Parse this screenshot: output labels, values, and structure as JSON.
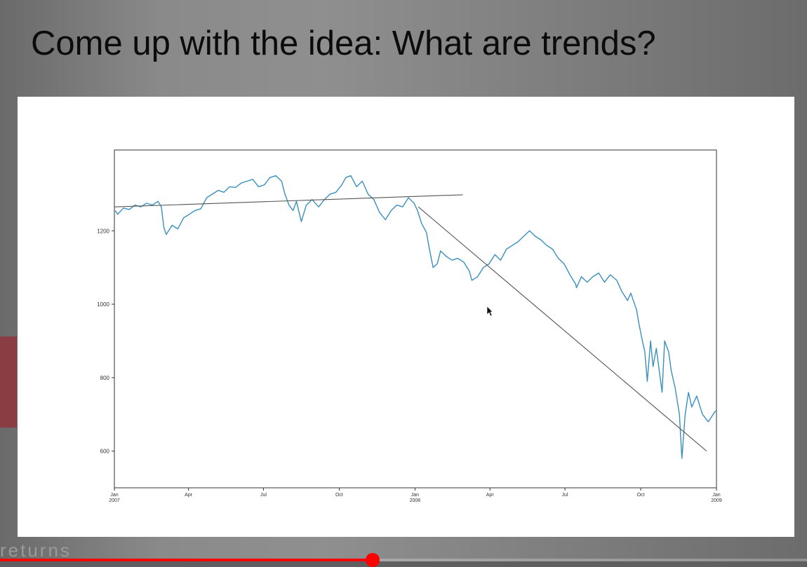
{
  "slide": {
    "title": "Come up with the idea: What are trends?"
  },
  "background": {
    "partial_text": "returns"
  },
  "player": {
    "progress_fraction": 0.462,
    "progress_color": "#ff0000"
  },
  "chart_data": {
    "type": "line",
    "title": "",
    "xlabel": "",
    "ylabel": "",
    "xlim": [
      "2007-01-01",
      "2009-01-01"
    ],
    "ylim": [
      500,
      1420
    ],
    "yticks": [
      600,
      800,
      1000,
      1200
    ],
    "ytick_labels": [
      "600",
      "800",
      "1000",
      "1200"
    ],
    "xticks": [
      {
        "date": "2007-01-01",
        "label": "Jan",
        "year": "2007"
      },
      {
        "date": "2007-04-01",
        "label": "Apr",
        "year": ""
      },
      {
        "date": "2007-07-01",
        "label": "Jul",
        "year": ""
      },
      {
        "date": "2007-10-01",
        "label": "Oct",
        "year": ""
      },
      {
        "date": "2008-01-01",
        "label": "Jan",
        "year": "2008"
      },
      {
        "date": "2008-04-01",
        "label": "Apr",
        "year": ""
      },
      {
        "date": "2008-07-01",
        "label": "Jul",
        "year": ""
      },
      {
        "date": "2008-10-01",
        "label": "Oct",
        "year": ""
      },
      {
        "date": "2009-01-01",
        "label": "Jan",
        "year": "2009"
      }
    ],
    "grid": false,
    "series": [
      {
        "color": "#3a8fbf",
        "points": [
          [
            "2007-01-02",
            1255
          ],
          [
            "2007-01-05",
            1245
          ],
          [
            "2007-01-12",
            1262
          ],
          [
            "2007-01-19",
            1258
          ],
          [
            "2007-01-26",
            1270
          ],
          [
            "2007-02-02",
            1265
          ],
          [
            "2007-02-09",
            1275
          ],
          [
            "2007-02-16",
            1270
          ],
          [
            "2007-02-23",
            1280
          ],
          [
            "2007-02-27",
            1265
          ],
          [
            "2007-03-02",
            1210
          ],
          [
            "2007-03-05",
            1190
          ],
          [
            "2007-03-12",
            1215
          ],
          [
            "2007-03-19",
            1205
          ],
          [
            "2007-03-26",
            1235
          ],
          [
            "2007-04-02",
            1245
          ],
          [
            "2007-04-09",
            1255
          ],
          [
            "2007-04-16",
            1260
          ],
          [
            "2007-04-23",
            1290
          ],
          [
            "2007-04-30",
            1300
          ],
          [
            "2007-05-07",
            1310
          ],
          [
            "2007-05-14",
            1305
          ],
          [
            "2007-05-21",
            1320
          ],
          [
            "2007-05-28",
            1318
          ],
          [
            "2007-06-04",
            1330
          ],
          [
            "2007-06-11",
            1335
          ],
          [
            "2007-06-18",
            1340
          ],
          [
            "2007-06-25",
            1320
          ],
          [
            "2007-07-02",
            1325
          ],
          [
            "2007-07-09",
            1345
          ],
          [
            "2007-07-16",
            1350
          ],
          [
            "2007-07-23",
            1335
          ],
          [
            "2007-07-27",
            1300
          ],
          [
            "2007-08-01",
            1270
          ],
          [
            "2007-08-06",
            1255
          ],
          [
            "2007-08-10",
            1280
          ],
          [
            "2007-08-16",
            1225
          ],
          [
            "2007-08-22",
            1270
          ],
          [
            "2007-08-29",
            1285
          ],
          [
            "2007-09-06",
            1265
          ],
          [
            "2007-09-13",
            1285
          ],
          [
            "2007-09-20",
            1300
          ],
          [
            "2007-09-27",
            1305
          ],
          [
            "2007-10-04",
            1325
          ],
          [
            "2007-10-09",
            1345
          ],
          [
            "2007-10-15",
            1350
          ],
          [
            "2007-10-22",
            1320
          ],
          [
            "2007-10-29",
            1335
          ],
          [
            "2007-11-05",
            1300
          ],
          [
            "2007-11-12",
            1285
          ],
          [
            "2007-11-19",
            1250
          ],
          [
            "2007-11-26",
            1230
          ],
          [
            "2007-12-03",
            1255
          ],
          [
            "2007-12-10",
            1270
          ],
          [
            "2007-12-17",
            1265
          ],
          [
            "2007-12-24",
            1290
          ],
          [
            "2007-12-31",
            1275
          ],
          [
            "2008-01-04",
            1255
          ],
          [
            "2008-01-09",
            1220
          ],
          [
            "2008-01-15",
            1195
          ],
          [
            "2008-01-18",
            1155
          ],
          [
            "2008-01-23",
            1100
          ],
          [
            "2008-01-28",
            1110
          ],
          [
            "2008-02-01",
            1145
          ],
          [
            "2008-02-08",
            1130
          ],
          [
            "2008-02-15",
            1120
          ],
          [
            "2008-02-22",
            1125
          ],
          [
            "2008-02-29",
            1115
          ],
          [
            "2008-03-07",
            1090
          ],
          [
            "2008-03-10",
            1065
          ],
          [
            "2008-03-17",
            1075
          ],
          [
            "2008-03-24",
            1100
          ],
          [
            "2008-03-31",
            1110
          ],
          [
            "2008-04-07",
            1135
          ],
          [
            "2008-04-14",
            1120
          ],
          [
            "2008-04-21",
            1150
          ],
          [
            "2008-04-28",
            1160
          ],
          [
            "2008-05-05",
            1170
          ],
          [
            "2008-05-12",
            1185
          ],
          [
            "2008-05-19",
            1200
          ],
          [
            "2008-05-26",
            1185
          ],
          [
            "2008-06-02",
            1175
          ],
          [
            "2008-06-09",
            1160
          ],
          [
            "2008-06-16",
            1150
          ],
          [
            "2008-06-23",
            1125
          ],
          [
            "2008-06-30",
            1110
          ],
          [
            "2008-07-07",
            1080
          ],
          [
            "2008-07-14",
            1055
          ],
          [
            "2008-07-15",
            1045
          ],
          [
            "2008-07-21",
            1075
          ],
          [
            "2008-07-28",
            1060
          ],
          [
            "2008-08-04",
            1075
          ],
          [
            "2008-08-11",
            1085
          ],
          [
            "2008-08-18",
            1060
          ],
          [
            "2008-08-25",
            1080
          ],
          [
            "2008-09-02",
            1065
          ],
          [
            "2008-09-08",
            1035
          ],
          [
            "2008-09-15",
            1010
          ],
          [
            "2008-09-19",
            1030
          ],
          [
            "2008-09-26",
            985
          ],
          [
            "2008-09-29",
            945
          ],
          [
            "2008-10-03",
            900
          ],
          [
            "2008-10-06",
            870
          ],
          [
            "2008-10-09",
            790
          ],
          [
            "2008-10-13",
            900
          ],
          [
            "2008-10-16",
            830
          ],
          [
            "2008-10-20",
            880
          ],
          [
            "2008-10-27",
            760
          ],
          [
            "2008-10-30",
            900
          ],
          [
            "2008-11-04",
            870
          ],
          [
            "2008-11-07",
            820
          ],
          [
            "2008-11-12",
            770
          ],
          [
            "2008-11-17",
            700
          ],
          [
            "2008-11-20",
            580
          ],
          [
            "2008-11-24",
            700
          ],
          [
            "2008-11-28",
            760
          ],
          [
            "2008-12-02",
            720
          ],
          [
            "2008-12-08",
            750
          ],
          [
            "2008-12-15",
            700
          ],
          [
            "2008-12-22",
            680
          ],
          [
            "2008-12-31",
            710
          ]
        ]
      }
    ],
    "trend_lines": [
      {
        "color": "#555555",
        "from": [
          "2007-01-01",
          1265
        ],
        "to": [
          "2008-02-28",
          1298
        ]
      },
      {
        "color": "#555555",
        "from": [
          "2008-01-05",
          1265
        ],
        "to": [
          "2008-12-20",
          600
        ]
      }
    ]
  }
}
